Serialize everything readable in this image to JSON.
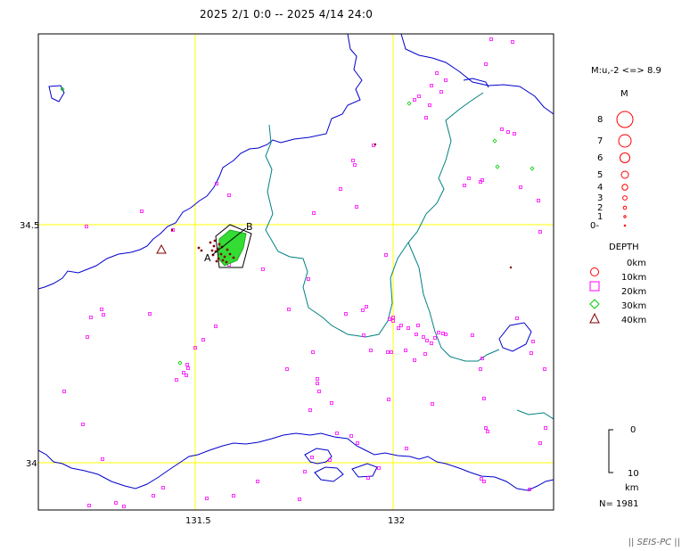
{
  "title": "2025 2/1 0:0 -- 2025 4/14 24:0",
  "map": {
    "x_ticks": [
      "131.5",
      "132"
    ],
    "y_ticks": [
      "34.5",
      "34"
    ],
    "section_labels": {
      "start": "A",
      "end": "B"
    },
    "grid_color": "#ffff00",
    "coast_color": "#0000cc",
    "border_color": "#008080"
  },
  "legend": {
    "magnitude_range": "M:u,-2 <=> 8.9",
    "magnitude_title": "M",
    "magnitudes": [
      "8",
      "7",
      "6",
      "5",
      "4",
      "3",
      "2",
      "1",
      "0-"
    ],
    "depth_title": "DEPTH",
    "depths": [
      {
        "label": "0km",
        "symbol": "circle",
        "color": "#ff0000"
      },
      {
        "label": "10km",
        "symbol": "square",
        "color": "#ff00ff"
      },
      {
        "label": "20km",
        "symbol": "square",
        "color": "#ff00ff"
      },
      {
        "label": "30km",
        "symbol": "diamond",
        "color": "#00cc00"
      },
      {
        "label": "40km",
        "symbol": "triangle",
        "color": "#800000"
      }
    ],
    "scale": {
      "top": "0",
      "bottom": "10",
      "unit": "km"
    },
    "count": "N= 1981"
  },
  "footer": "|| SEIS-PC ||"
}
